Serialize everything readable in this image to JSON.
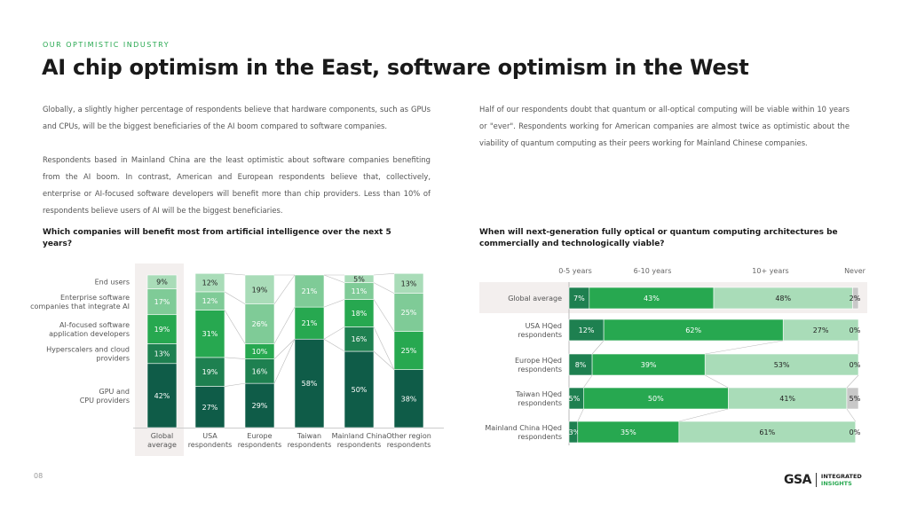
{
  "kicker": "OUR OPTIMISTIC INDUSTRY",
  "title": "AI chip optimism in the East, software optimism in the West",
  "paragraphs": [
    "Globally, a slightly higher percentage of respondents believe that hardware components, such as GPUs and CPUs, will be the biggest beneficiaries of the AI boom compared to software companies.",
    "Respondents based in Mainland China are the least optimistic about software companies benefiting from the AI boom. In contrast, American and European respondents believe that, collectively, enterprise or AI-focused software developers will benefit more than chip providers. Less than 10% of respondents believe users of AI will be the biggest beneficiaries.",
    "Half of our respondents doubt that quantum or all-optical computing will be viable within 10 years or \"ever\". Respondents working for American companies are almost twice as optimistic about the viability of quantum computing as their peers working for Mainland Chinese companies."
  ],
  "page_number": "08",
  "logo": {
    "brand": "GSA",
    "line1": "INTEGRATED",
    "line2": "INSIGHTS"
  },
  "colors": {
    "dark": "#0f5c48",
    "mid_dark": "#1e8050",
    "green": "#27a850",
    "light": "#7fcb97",
    "lightest": "#a9dcb8",
    "never": "#c8c8c8",
    "highlight": "#f3efee",
    "accent": "#27a850"
  },
  "chart_data": [
    {
      "type": "bar",
      "stacked": true,
      "orientation": "vertical",
      "title": "Which companies will benefit most from artificial intelligence over the next 5 years?",
      "categories": [
        "Global average",
        "USA respondents",
        "Europe respondents",
        "Taiwan respondents",
        "Mainland China respondents",
        "Other region respondents"
      ],
      "highlight_category": "Global average",
      "series": [
        {
          "name": "GPU and CPU providers",
          "values": [
            42,
            27,
            29,
            58,
            50,
            38
          ]
        },
        {
          "name": "Hyperscalers and cloud providers",
          "values": [
            13,
            19,
            16,
            0,
            16,
            0
          ]
        },
        {
          "name": "AI-focused software application developers",
          "values": [
            19,
            31,
            10,
            21,
            18,
            25
          ]
        },
        {
          "name": "Enterprise software companies that integrate AI",
          "values": [
            17,
            12,
            26,
            21,
            11,
            25
          ]
        },
        {
          "name": "End users",
          "values": [
            9,
            12,
            19,
            0,
            5,
            13
          ]
        }
      ],
      "ylim": [
        0,
        100
      ],
      "legend": "left"
    },
    {
      "type": "bar",
      "stacked": true,
      "orientation": "horizontal",
      "title": "When will next-generation fully optical or quantum computing architectures be commercially and technologically viable?",
      "categories": [
        "Global average",
        "USA HQed respondents",
        "Europe HQed respondents",
        "Taiwan HQed respondents",
        "Mainland China HQed respondents"
      ],
      "highlight_category": "Global average",
      "series": [
        {
          "name": "0-5 years",
          "values": [
            7,
            12,
            8,
            5,
            3
          ]
        },
        {
          "name": "6-10 years",
          "values": [
            43,
            62,
            39,
            50,
            35
          ]
        },
        {
          "name": "10+ years",
          "values": [
            48,
            27,
            53,
            41,
            61
          ]
        },
        {
          "name": "Never",
          "values": [
            2,
            0,
            0,
            5,
            0
          ]
        }
      ],
      "xlim": [
        0,
        100
      ],
      "legend": "top"
    }
  ]
}
